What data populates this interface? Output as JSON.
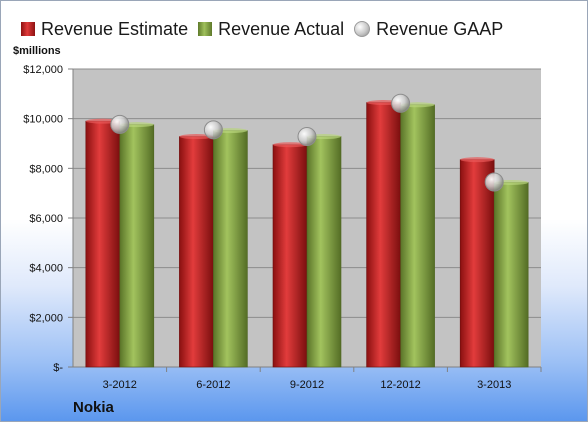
{
  "legend": {
    "estimate": "Revenue Estimate",
    "actual": "Revenue Actual",
    "gaap": "Revenue GAAP"
  },
  "units_label": "$millions",
  "company": "Nokia",
  "colors": {
    "estimate": "#c8202a",
    "actual": "#8aab4a",
    "gaap": "#c8c8c8",
    "plot_background": "#c0c0c0"
  },
  "chart_data": {
    "type": "bar",
    "title": "",
    "xlabel": "",
    "ylabel": "$millions",
    "ylim": [
      0,
      12000
    ],
    "grid": true,
    "legend_position": "top",
    "categories": [
      "3-2012",
      "6-2012",
      "9-2012",
      "12-2012",
      "3-2013"
    ],
    "y_tick_labels": [
      "$-",
      "$2,000",
      "$4,000",
      "$6,000",
      "$8,000",
      "$10,000",
      "$12,000"
    ],
    "series": [
      {
        "name": "Revenue Estimate",
        "type": "bar",
        "values": [
          9900,
          9280,
          8950,
          10650,
          8350
        ]
      },
      {
        "name": "Revenue Actual",
        "type": "bar",
        "values": [
          9760,
          9520,
          9280,
          10560,
          7430
        ]
      },
      {
        "name": "Revenue GAAP",
        "type": "marker",
        "values": [
          9770,
          9550,
          9280,
          10620,
          7450
        ]
      }
    ]
  }
}
